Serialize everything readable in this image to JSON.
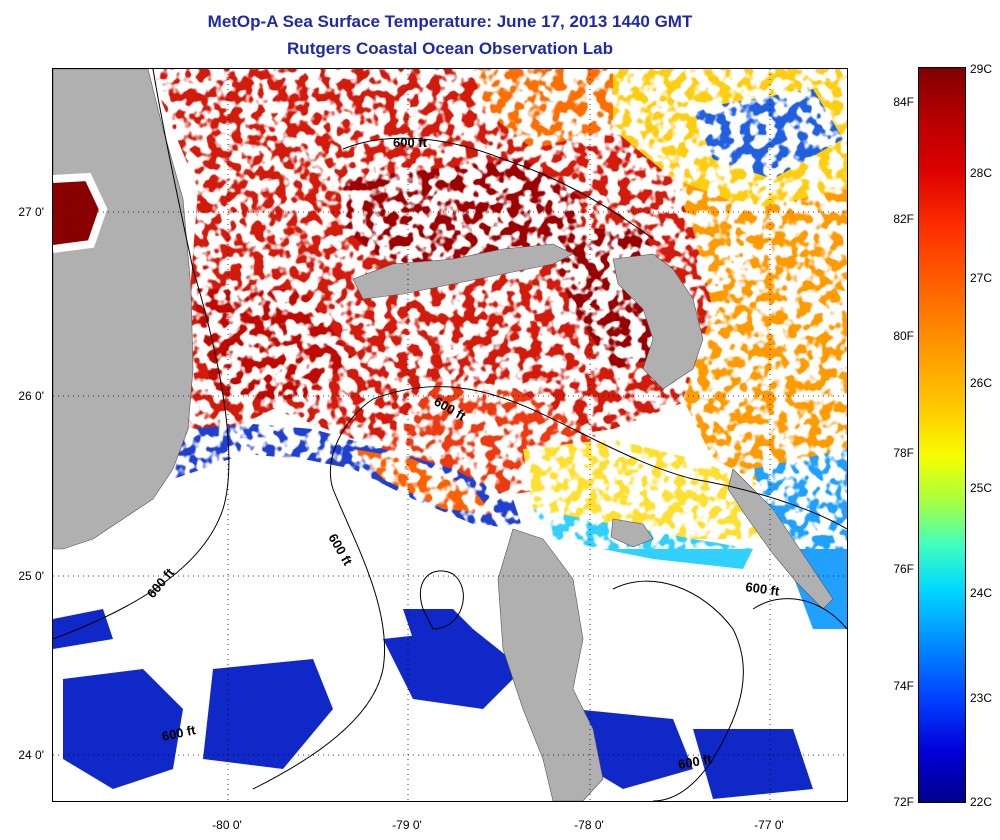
{
  "header": {
    "title": "MetOp-A Sea Surface Temperature:  June 17, 2013 1440 GMT",
    "subtitle": "Rutgers Coastal Ocean Observation Lab"
  },
  "axes": {
    "lat_labels": [
      "27 0'",
      "26 0'",
      "25 0'",
      "24 0'"
    ],
    "lon_labels": [
      "-80 0'",
      "-79 0'",
      "-78 0'",
      "-77 0'"
    ]
  },
  "colorbar": {
    "celsius_labels": [
      "29C",
      "28C",
      "27C",
      "26C",
      "25C",
      "24C",
      "23C",
      "22C"
    ],
    "fahrenheit_labels": [
      "84F",
      "82F",
      "80F",
      "78F",
      "76F",
      "74F",
      "72F"
    ],
    "scale_min_c": 22,
    "scale_max_c": 29
  },
  "map": {
    "contour_label": "600 ft",
    "land_color": "#b0b0b0",
    "cloud_color": "#ffffff"
  }
}
